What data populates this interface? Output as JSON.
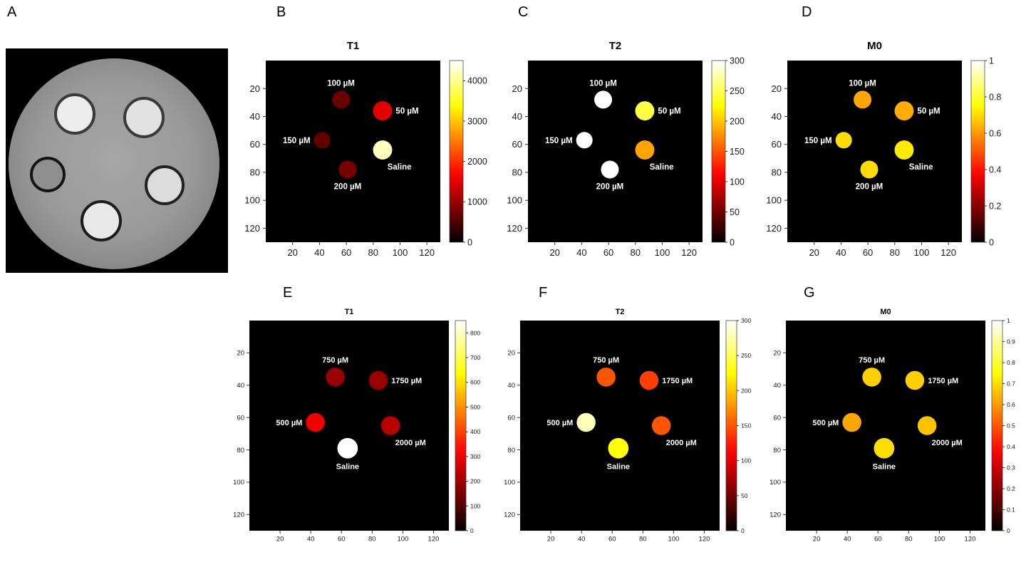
{
  "page": {
    "background": "#ffffff"
  },
  "colors": {
    "plot_background": "#000000",
    "spot_label_text": "#ffffff",
    "axis_text": "#1a1a1a",
    "colormap": "hot"
  },
  "panels": {
    "a": {
      "label": "A"
    }
  },
  "chart_data": [
    {
      "panel": "B",
      "type": "heatmap",
      "title": "T1",
      "x_ticks": [
        20,
        40,
        60,
        80,
        100,
        120
      ],
      "y_ticks": [
        20,
        40,
        60,
        80,
        100,
        120
      ],
      "axis_max": 130,
      "colorbar": {
        "min": 0,
        "max": 4500,
        "ticks": [
          0,
          1000,
          2000,
          3000,
          4000
        ]
      },
      "spots": [
        {
          "label": "100 µM",
          "x": 56,
          "y": 28,
          "r": 6.5,
          "value": 700,
          "label_side": "above"
        },
        {
          "label": "50 µM",
          "x": 87,
          "y": 36,
          "r": 7,
          "value": 1500,
          "label_side": "right"
        },
        {
          "label": "150 µM",
          "x": 42,
          "y": 57,
          "r": 6,
          "value": 650,
          "label_side": "left"
        },
        {
          "label": "Saline",
          "x": 87,
          "y": 64,
          "r": 7,
          "value": 4200,
          "label_side": "below-right"
        },
        {
          "label": "200 µM",
          "x": 61,
          "y": 78,
          "r": 6.5,
          "value": 800,
          "label_side": "below"
        }
      ]
    },
    {
      "panel": "C",
      "type": "heatmap",
      "title": "T2",
      "x_ticks": [
        20,
        40,
        60,
        80,
        100,
        120
      ],
      "y_ticks": [
        20,
        40,
        60,
        80,
        100,
        120
      ],
      "axis_max": 130,
      "colorbar": {
        "min": 0,
        "max": 300,
        "ticks": [
          0,
          50,
          100,
          150,
          200,
          250,
          300
        ]
      },
      "spots": [
        {
          "label": "100 µM",
          "x": 56,
          "y": 28,
          "r": 6.5,
          "value": 300,
          "label_side": "above"
        },
        {
          "label": "50 µM",
          "x": 87,
          "y": 36,
          "r": 7,
          "value": 245,
          "label_side": "right"
        },
        {
          "label": "150 µM",
          "x": 42,
          "y": 57,
          "r": 6,
          "value": 300,
          "label_side": "left"
        },
        {
          "label": "Saline",
          "x": 87,
          "y": 64,
          "r": 7,
          "value": 185,
          "label_side": "below-right"
        },
        {
          "label": "200 µM",
          "x": 61,
          "y": 78,
          "r": 6.5,
          "value": 300,
          "label_side": "below"
        }
      ]
    },
    {
      "panel": "D",
      "type": "heatmap",
      "title": "M0",
      "x_ticks": [
        20,
        40,
        60,
        80,
        100,
        120
      ],
      "y_ticks": [
        20,
        40,
        60,
        80,
        100,
        120
      ],
      "axis_max": 130,
      "colorbar": {
        "min": 0,
        "max": 1,
        "ticks": [
          0,
          0.2,
          0.4,
          0.6,
          0.8,
          1
        ]
      },
      "spots": [
        {
          "label": "100 µM",
          "x": 56,
          "y": 28,
          "r": 6.5,
          "value": 0.62,
          "label_side": "above"
        },
        {
          "label": "50 µM",
          "x": 87,
          "y": 36,
          "r": 7,
          "value": 0.63,
          "label_side": "right"
        },
        {
          "label": "150 µM",
          "x": 42,
          "y": 57,
          "r": 6,
          "value": 0.7,
          "label_side": "left"
        },
        {
          "label": "Saline",
          "x": 87,
          "y": 64,
          "r": 7,
          "value": 0.72,
          "label_side": "below-right"
        },
        {
          "label": "200 µM",
          "x": 61,
          "y": 78,
          "r": 6.5,
          "value": 0.7,
          "label_side": "below"
        }
      ]
    },
    {
      "panel": "E",
      "type": "heatmap",
      "title": "T1",
      "x_ticks": [
        20,
        40,
        60,
        80,
        100,
        120
      ],
      "y_ticks": [
        20,
        40,
        60,
        80,
        100,
        120
      ],
      "axis_max": 130,
      "colorbar": {
        "min": 0,
        "max": 850,
        "ticks": [
          0,
          100,
          200,
          300,
          400,
          500,
          600,
          700,
          800
        ]
      },
      "spots": [
        {
          "label": "750 µM",
          "x": 56,
          "y": 35,
          "r": 6,
          "value": 190,
          "label_side": "above"
        },
        {
          "label": "1750 µM",
          "x": 84,
          "y": 37,
          "r": 6,
          "value": 190,
          "label_side": "right"
        },
        {
          "label": "500 µM",
          "x": 43,
          "y": 63,
          "r": 6,
          "value": 300,
          "label_side": "left"
        },
        {
          "label": "2000 µM",
          "x": 92,
          "y": 65,
          "r": 6,
          "value": 230,
          "label_side": "below-right"
        },
        {
          "label": "Saline",
          "x": 64,
          "y": 79,
          "r": 6.5,
          "value": 850,
          "label_side": "below"
        }
      ]
    },
    {
      "panel": "F",
      "type": "heatmap",
      "title": "T2",
      "x_ticks": [
        20,
        40,
        60,
        80,
        100,
        120
      ],
      "y_ticks": [
        20,
        40,
        60,
        80,
        100,
        120
      ],
      "axis_max": 130,
      "colorbar": {
        "min": 0,
        "max": 300,
        "ticks": [
          0,
          50,
          100,
          150,
          200,
          250,
          300
        ]
      },
      "spots": [
        {
          "label": "750 µM",
          "x": 56,
          "y": 35,
          "r": 6,
          "value": 150,
          "label_side": "above"
        },
        {
          "label": "1750 µM",
          "x": 84,
          "y": 37,
          "r": 6,
          "value": 140,
          "label_side": "right"
        },
        {
          "label": "500 µM",
          "x": 43,
          "y": 63,
          "r": 6,
          "value": 280,
          "label_side": "left"
        },
        {
          "label": "2000 µM",
          "x": 92,
          "y": 65,
          "r": 6,
          "value": 150,
          "label_side": "below-right"
        },
        {
          "label": "Saline",
          "x": 64,
          "y": 79,
          "r": 6.5,
          "value": 225,
          "label_side": "below"
        }
      ]
    },
    {
      "panel": "G",
      "type": "heatmap",
      "title": "M0",
      "x_ticks": [
        20,
        40,
        60,
        80,
        100,
        120
      ],
      "y_ticks": [
        20,
        40,
        60,
        80,
        100,
        120
      ],
      "axis_max": 130,
      "colorbar": {
        "min": 0,
        "max": 1,
        "ticks": [
          0,
          0.1,
          0.2,
          0.3,
          0.4,
          0.5,
          0.6,
          0.7,
          0.8,
          0.9,
          1
        ]
      },
      "spots": [
        {
          "label": "750 µM",
          "x": 56,
          "y": 35,
          "r": 6,
          "value": 0.68,
          "label_side": "above"
        },
        {
          "label": "1750 µM",
          "x": 84,
          "y": 37,
          "r": 6,
          "value": 0.68,
          "label_side": "right"
        },
        {
          "label": "500 µM",
          "x": 43,
          "y": 63,
          "r": 6,
          "value": 0.62,
          "label_side": "left"
        },
        {
          "label": "2000 µM",
          "x": 92,
          "y": 65,
          "r": 6,
          "value": 0.66,
          "label_side": "below-right"
        },
        {
          "label": "Saline",
          "x": 64,
          "y": 79,
          "r": 6.5,
          "value": 0.7,
          "label_side": "below"
        }
      ]
    }
  ]
}
